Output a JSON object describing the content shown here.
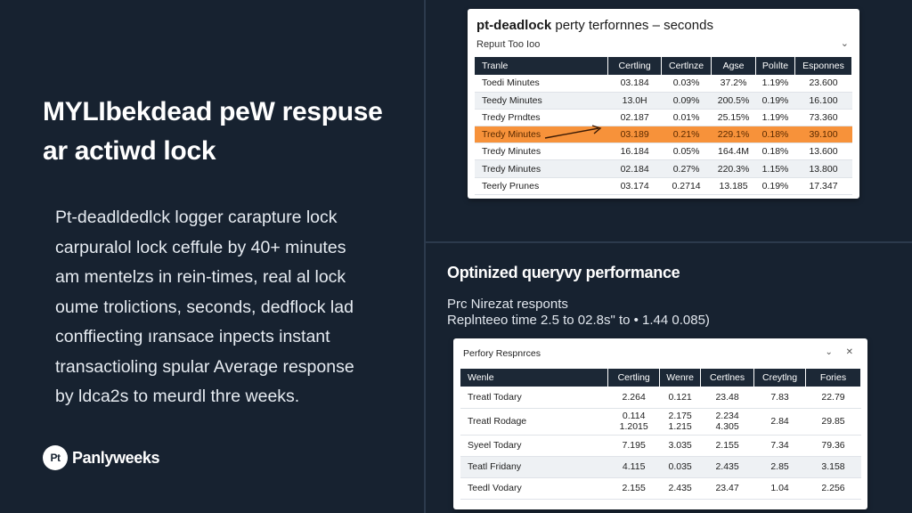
{
  "left": {
    "headline_line1": "MYLIbekdead peW respuse",
    "headline_line2": "ar actiwd lock",
    "body_lines": [
      "Pt-deadldedlck logger carapture lock",
      "carpuralol lock ceffule by 40+ minutes",
      "am mentelzs in rein-times, real al lock",
      "oume trolictions, seconds, dedflock lad",
      "conffiecting ıransace inpects instant",
      "transactioling spular Average response",
      "by ldca2s to meurdl thre weeks."
    ],
    "brand_logo": "Pt",
    "brand_name": "Panlyweeks"
  },
  "top_card": {
    "title_bold": "pt-deadlock",
    "title_rest": " perty terfornnes – seconds",
    "subtitle": "Repuıt Too Ioo",
    "chevron": "⌄",
    "columns": [
      "Tranle",
      "Certling",
      "Certlnze",
      "Agse",
      "Polılte",
      "Esponnes"
    ],
    "rows": [
      [
        "Toedi Minutes",
        "03.184",
        "0.03%",
        "37.2%",
        "1.19%",
        "23.600"
      ],
      [
        "Teedy Minutes",
        "13.0H",
        "0.09%",
        "200.5%",
        "0.19%",
        "16.100"
      ],
      [
        "Tredy Prndtes",
        "02.187",
        "0.01%",
        "25.15%",
        "1.19%",
        "73.360"
      ],
      [
        "Tredy Minutes",
        "03.189",
        "0.21%",
        "229.1%",
        "0.18%",
        "39.100"
      ],
      [
        "Tredy Minutes",
        "16.184",
        "0.05%",
        "164.4M",
        "0.18%",
        "13.600"
      ],
      [
        "Tredy Minutes",
        "02.184",
        "0.27%",
        "220.3%",
        "1.15%",
        "13.800"
      ],
      [
        "Teerly Prunes",
        "03.174",
        "0.2714",
        "13.185",
        "0.19%",
        "17.347"
      ]
    ],
    "highlight_row": 3
  },
  "section": {
    "title": "Optinized queryvy performance",
    "sub1": "Prc Nirezat responts",
    "sub2": "Replnteeo time 2.5 to 02.8s\" to • 1.44 0.085)"
  },
  "bottom_card": {
    "title": "Perfory Respnrces",
    "controls": "⌄ ✕",
    "columns": [
      "Wenle",
      "Certling",
      "Wenre",
      "Certlnes",
      "Creytlng",
      "Fories"
    ],
    "rows": [
      [
        "Treatl Todary",
        "2.264",
        "0.121",
        "23.48",
        "7.83",
        "22.79"
      ],
      [
        "Treatl Rodage",
        "0.114\n1.2015",
        "2.175\n1.215",
        "2.234\n4.305",
        "2.84",
        "29.85"
      ],
      [
        "Syeel Todary",
        "7.195",
        "3.035",
        "2.155",
        "7.34",
        "79.36"
      ],
      [
        "Teatl Fridany",
        "4.115",
        "0.035",
        "2.435",
        "2.85",
        "3.158"
      ],
      [
        "Teedl Vodary",
        "2.155",
        "2.435",
        "23.47",
        "1.04",
        "2.256"
      ]
    ]
  },
  "colors": {
    "background": "#172230",
    "table_header": "#1c2836",
    "highlight": "#f7923a",
    "divider": "#2c3a4c"
  },
  "icons": {
    "arrow": "arrow-right-icon",
    "chevron": "chevron-down-icon",
    "close": "close-icon"
  }
}
